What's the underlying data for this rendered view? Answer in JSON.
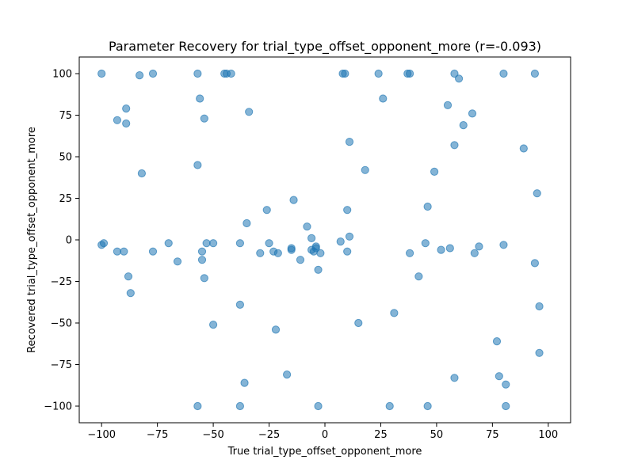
{
  "chart_data": {
    "type": "scatter",
    "title": "Parameter Recovery for trial_type_offset_opponent_more (r=-0.093)",
    "xlabel": "True trial_type_offset_opponent_more",
    "ylabel": "Recovered trial_type_offset_opponent_more",
    "xlim": [
      -110,
      110
    ],
    "ylim": [
      -110,
      110
    ],
    "xticks": [
      -100,
      -75,
      -50,
      -25,
      0,
      25,
      50,
      75,
      100
    ],
    "yticks": [
      -100,
      -75,
      -50,
      -25,
      0,
      25,
      50,
      75,
      100
    ],
    "grid": false,
    "colors": {
      "marker_fill": "#1f77b4",
      "marker_edge": "#1f77b4",
      "marker_opacity": 0.55
    },
    "points": [
      {
        "x": -100,
        "y": 100
      },
      {
        "x": -100,
        "y": -3
      },
      {
        "x": -99,
        "y": -2
      },
      {
        "x": -93,
        "y": 72
      },
      {
        "x": -93,
        "y": -7
      },
      {
        "x": -90,
        "y": -7
      },
      {
        "x": -89,
        "y": 79
      },
      {
        "x": -89,
        "y": 70
      },
      {
        "x": -88,
        "y": -22
      },
      {
        "x": -87,
        "y": -32
      },
      {
        "x": -83,
        "y": 99
      },
      {
        "x": -82,
        "y": 40
      },
      {
        "x": -77,
        "y": 100
      },
      {
        "x": -77,
        "y": -7
      },
      {
        "x": -70,
        "y": -2
      },
      {
        "x": -66,
        "y": -13
      },
      {
        "x": -57,
        "y": 100
      },
      {
        "x": -57,
        "y": 45
      },
      {
        "x": -57,
        "y": -100
      },
      {
        "x": -56,
        "y": 85
      },
      {
        "x": -55,
        "y": -7
      },
      {
        "x": -55,
        "y": -12
      },
      {
        "x": -54,
        "y": 73
      },
      {
        "x": -54,
        "y": -23
      },
      {
        "x": -53,
        "y": -2
      },
      {
        "x": -50,
        "y": -2
      },
      {
        "x": -50,
        "y": -51
      },
      {
        "x": -45,
        "y": 100
      },
      {
        "x": -44,
        "y": 100
      },
      {
        "x": -42,
        "y": 100
      },
      {
        "x": -38,
        "y": -2
      },
      {
        "x": -38,
        "y": -39
      },
      {
        "x": -38,
        "y": -100
      },
      {
        "x": -36,
        "y": -86
      },
      {
        "x": -35,
        "y": 10
      },
      {
        "x": -34,
        "y": 77
      },
      {
        "x": -29,
        "y": -8
      },
      {
        "x": -26,
        "y": 18
      },
      {
        "x": -25,
        "y": -2
      },
      {
        "x": -23,
        "y": -7
      },
      {
        "x": -22,
        "y": -54
      },
      {
        "x": -21,
        "y": -8
      },
      {
        "x": -17,
        "y": -81
      },
      {
        "x": -15,
        "y": -5
      },
      {
        "x": -15,
        "y": -6
      },
      {
        "x": -14,
        "y": 24
      },
      {
        "x": -11,
        "y": -12
      },
      {
        "x": -8,
        "y": 8
      },
      {
        "x": -6,
        "y": 1
      },
      {
        "x": -6,
        "y": -6
      },
      {
        "x": -5,
        "y": -7
      },
      {
        "x": -4,
        "y": -4
      },
      {
        "x": -4,
        "y": -5
      },
      {
        "x": -3,
        "y": -18
      },
      {
        "x": -3,
        "y": -100
      },
      {
        "x": -2,
        "y": -8
      },
      {
        "x": 7,
        "y": -1
      },
      {
        "x": 8,
        "y": 100
      },
      {
        "x": 9,
        "y": 100
      },
      {
        "x": 10,
        "y": 18
      },
      {
        "x": 10,
        "y": -7
      },
      {
        "x": 11,
        "y": 59
      },
      {
        "x": 11,
        "y": 2
      },
      {
        "x": 15,
        "y": -50
      },
      {
        "x": 18,
        "y": 42
      },
      {
        "x": 24,
        "y": 100
      },
      {
        "x": 26,
        "y": 85
      },
      {
        "x": 29,
        "y": -100
      },
      {
        "x": 31,
        "y": -44
      },
      {
        "x": 37,
        "y": 100
      },
      {
        "x": 38,
        "y": 100
      },
      {
        "x": 38,
        "y": -8
      },
      {
        "x": 42,
        "y": -22
      },
      {
        "x": 45,
        "y": -2
      },
      {
        "x": 46,
        "y": 20
      },
      {
        "x": 46,
        "y": -100
      },
      {
        "x": 49,
        "y": 41
      },
      {
        "x": 52,
        "y": -6
      },
      {
        "x": 55,
        "y": 81
      },
      {
        "x": 56,
        "y": -5
      },
      {
        "x": 58,
        "y": 100
      },
      {
        "x": 58,
        "y": 57
      },
      {
        "x": 58,
        "y": -83
      },
      {
        "x": 60,
        "y": 97
      },
      {
        "x": 62,
        "y": 69
      },
      {
        "x": 66,
        "y": 76
      },
      {
        "x": 67,
        "y": -8
      },
      {
        "x": 69,
        "y": -4
      },
      {
        "x": 77,
        "y": -61
      },
      {
        "x": 78,
        "y": -82
      },
      {
        "x": 80,
        "y": -3
      },
      {
        "x": 80,
        "y": 100
      },
      {
        "x": 81,
        "y": -87
      },
      {
        "x": 81,
        "y": -100
      },
      {
        "x": 89,
        "y": 55
      },
      {
        "x": 94,
        "y": -14
      },
      {
        "x": 94,
        "y": 100
      },
      {
        "x": 95,
        "y": 28
      },
      {
        "x": 96,
        "y": -40
      },
      {
        "x": 96,
        "y": -68
      }
    ]
  }
}
